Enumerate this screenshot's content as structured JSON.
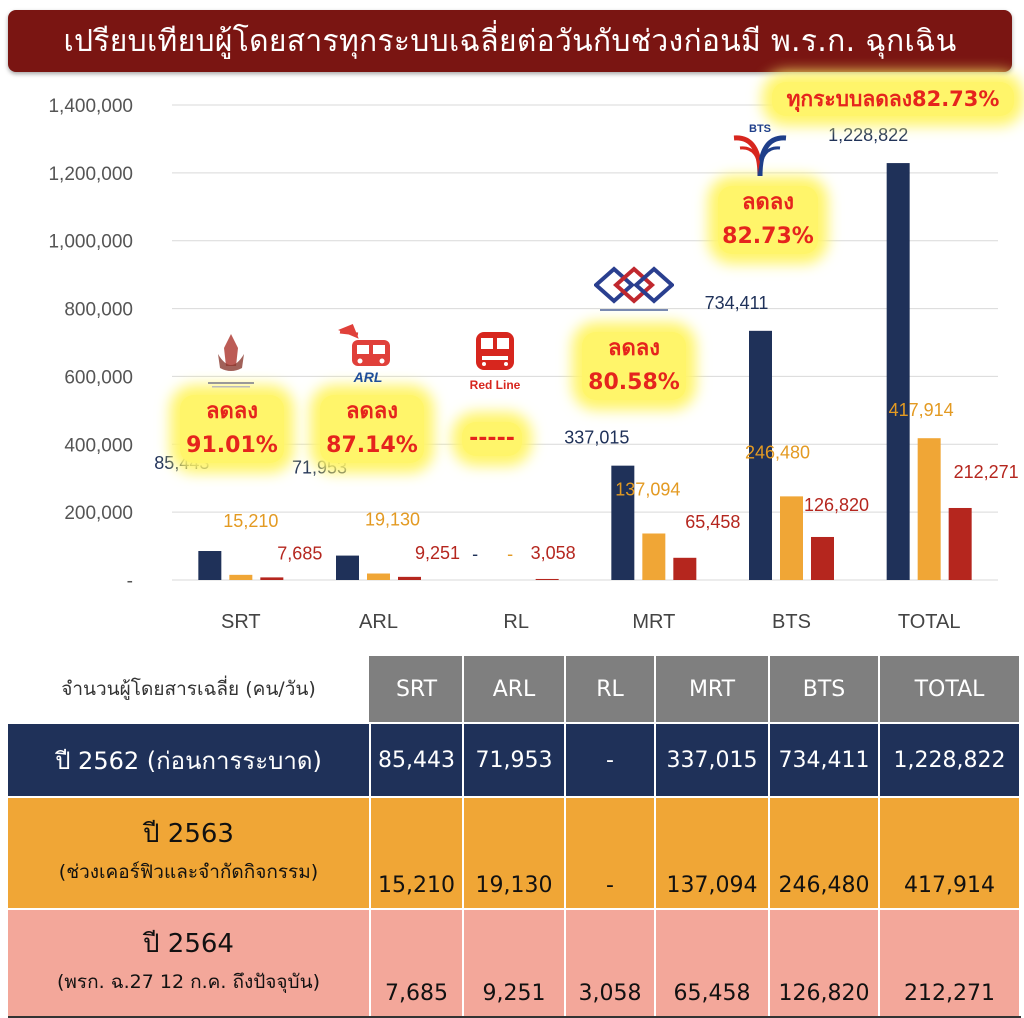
{
  "title": "เปรียบเทียบผู้โดยสารทุกระบบเฉลี่ยต่อวันกับช่วงก่อนมี พ.ร.ก. ฉุกเฉิน",
  "highlights": {
    "srt": [
      "ลดลง",
      "91.01%"
    ],
    "arl": [
      "ลดลง",
      "87.14%"
    ],
    "rl": "-----",
    "mrt": [
      "ลดลง",
      "80.58%"
    ],
    "bts": [
      "ลดลง",
      "82.73%"
    ],
    "total": "ทุกระบบลดลง82.73%"
  },
  "logos": {
    "arl": "ARL",
    "rl": "Red Line",
    "bts": "BTS"
  },
  "colors": {
    "y2562": "#1f3159",
    "y2563": "#f0a636",
    "y2564": "#b5261e",
    "title_bg": "#7a1512"
  },
  "chart_data": {
    "type": "bar",
    "categories": [
      "SRT",
      "ARL",
      "RL",
      "MRT",
      "BTS",
      "TOTAL"
    ],
    "ylim": [
      0,
      1400000
    ],
    "yticks": [
      "-",
      "200,000",
      "400,000",
      "600,000",
      "800,000",
      "1,000,000",
      "1,200,000",
      "1,400,000"
    ],
    "grid": true,
    "series": [
      {
        "values": [
          85443,
          71953,
          0,
          337015,
          734411,
          1228822
        ],
        "labels": [
          "85,443",
          "71,953",
          "-",
          "337,015",
          "734,411",
          "1,228,822"
        ]
      },
      {
        "values": [
          15210,
          19130,
          0,
          137094,
          246480,
          417914
        ],
        "labels": [
          "15,210",
          "19,130",
          "-",
          "137,094",
          "246,480",
          "417,914"
        ]
      },
      {
        "values": [
          7685,
          9251,
          3058,
          65458,
          126820,
          212271
        ],
        "labels": [
          "7,685",
          "9,251",
          "3,058",
          "65,458",
          "126,820",
          "212,271"
        ]
      }
    ]
  },
  "table": {
    "header": [
      "จำนวนผู้โดยสารเฉลี่ย (คน/วัน)",
      "SRT",
      "ARL",
      "RL",
      "MRT",
      "BTS",
      "TOTAL"
    ],
    "row1": {
      "label": "ปี 2562 (ก่อนการระบาด)",
      "values": [
        "85,443",
        "71,953",
        "-",
        "337,015",
        "734,411",
        "1,228,822"
      ]
    },
    "row2": {
      "label": "ปี 2563",
      "sublabel": "(ช่วงเคอร์ฟิวและจำกัดกิจกรรม)",
      "values": [
        "15,210",
        "19,130",
        "-",
        "137,094",
        "246,480",
        "417,914"
      ]
    },
    "row3": {
      "label": "ปี 2564",
      "sublabel": "(พรก. ฉ.27 12 ก.ค. ถึงปัจจุบัน)",
      "values": [
        "7,685",
        "9,251",
        "3,058",
        "65,458",
        "126,820",
        "212,271"
      ]
    }
  }
}
